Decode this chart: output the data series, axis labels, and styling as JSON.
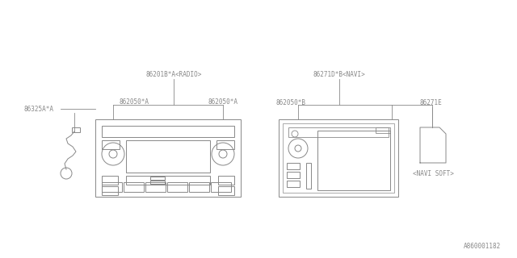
{
  "line_color": "#888888",
  "text_color": "#888888",
  "part_id": "A860001182",
  "radio_label": "86201B*A<RADIO>",
  "navi_label": "86271D*B<NAVI>",
  "label_862050A_left": "862050*A",
  "label_862050A_right": "862050*A",
  "label_86325A": "86325A*A",
  "label_862050B": "862050*B",
  "label_86271E": "86271E",
  "label_navi_soft": "<NAVI SOFT>",
  "font_size": 5.5
}
